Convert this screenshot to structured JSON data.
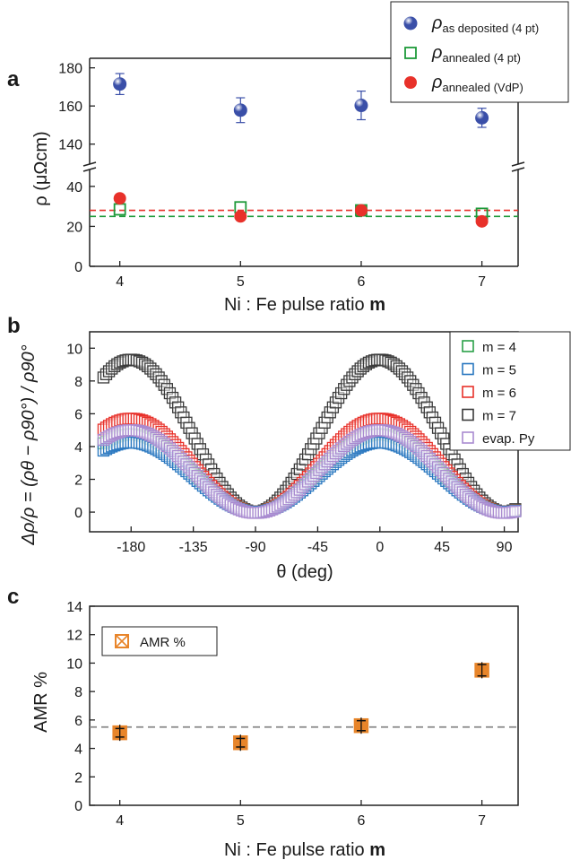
{
  "chart_data": [
    {
      "panel": "a",
      "type": "scatter",
      "panel_label": "a",
      "xlabel": "Ni : Fe pulse ratio",
      "xlabel_bold": "m",
      "ylabel": "ρ (μΩcm)",
      "xlim": [
        3.75,
        7.3
      ],
      "x_ticks": [
        "4",
        "5",
        "6",
        "7"
      ],
      "y_ticks_lower": [
        "0",
        "20",
        "40"
      ],
      "y_ticks_upper": [
        "140",
        "160",
        "180"
      ],
      "ylim_lower": [
        0,
        48
      ],
      "ylim_upper": [
        130,
        185
      ],
      "axis_break": true,
      "legend_position": "top-right, outside frame",
      "series": [
        {
          "name": "ρ",
          "subscript": "as deposited (4 pt)",
          "marker": "filled-circle",
          "color": "#3a4fa8",
          "x": [
            4,
            5,
            6,
            7
          ],
          "y": [
            171.5,
            157.8,
            160.3,
            153.8
          ],
          "err": [
            5.5,
            6.5,
            7.5,
            5
          ]
        },
        {
          "name": "ρ",
          "subscript": "annealed (4 pt)",
          "marker": "open-square",
          "color": "#1e9a3a",
          "x": [
            4,
            5,
            6,
            7
          ],
          "y": [
            28.5,
            29.5,
            28,
            26.3
          ]
        },
        {
          "name": "ρ",
          "subscript": "annealed (VdP)",
          "marker": "filled-circle",
          "color": "#e8312a",
          "x": [
            4,
            5,
            6,
            7
          ],
          "y": [
            34,
            25,
            28,
            22.5
          ]
        }
      ],
      "reference_lines": [
        {
          "y": 28,
          "color": "#e8312a",
          "style": "dashed"
        },
        {
          "y": 25,
          "color": "#1e9a3a",
          "style": "dashed"
        }
      ]
    },
    {
      "panel": "b",
      "type": "scatter",
      "panel_label": "b",
      "xlabel": "θ (deg)",
      "ylabel": "Δρ/ρ = (ρθ − ρ90°) / ρ90°",
      "xlim": [
        -210,
        100
      ],
      "ylim": [
        -1.2,
        11
      ],
      "x_ticks": [
        "-180",
        "-135",
        "-90",
        "-45",
        "0",
        "45",
        "90"
      ],
      "y_ticks": [
        "0",
        "2",
        "4",
        "6",
        "8",
        "10"
      ],
      "legend_position": "top-right, overlapping frame",
      "model": "y = A·cos²(θ) + c, sampled every 2°",
      "series": [
        {
          "name": "m = 4",
          "color": "#2aa048",
          "amplitude": 4.75,
          "offset": 0
        },
        {
          "name": "m = 5",
          "color": "#2a78c0",
          "amplitude": 4.25,
          "offset": 0
        },
        {
          "name": "m = 6",
          "color": "#e8312a",
          "amplitude": 5.7,
          "offset": 0
        },
        {
          "name": "m = 7",
          "color": "#3a3a3a",
          "amplitude": 9.3,
          "offset": 0
        },
        {
          "name": "evap. Py",
          "color": "#a98ad0",
          "amplitude": 5.05,
          "offset": -0.05
        }
      ]
    },
    {
      "panel": "c",
      "type": "scatter",
      "panel_label": "c",
      "xlabel": "Ni : Fe pulse ratio",
      "xlabel_bold": "m",
      "ylabel": "AMR %",
      "xlim": [
        3.75,
        7.3
      ],
      "ylim": [
        0,
        14
      ],
      "x_ticks": [
        "4",
        "5",
        "6",
        "7"
      ],
      "y_ticks": [
        "0",
        "2",
        "4",
        "6",
        "8",
        "10",
        "12",
        "14"
      ],
      "legend_position": "top-left",
      "series": [
        {
          "name": "AMR %",
          "color": "#e8852a",
          "marker": "crossed-square",
          "x": [
            4,
            5,
            6,
            7
          ],
          "y": [
            5.1,
            4.4,
            5.6,
            9.5
          ],
          "err": [
            0.3,
            0.3,
            0.35,
            0.4
          ]
        }
      ],
      "reference_lines": [
        {
          "y": 5.5,
          "color": "#888888",
          "style": "dashed"
        }
      ]
    }
  ]
}
